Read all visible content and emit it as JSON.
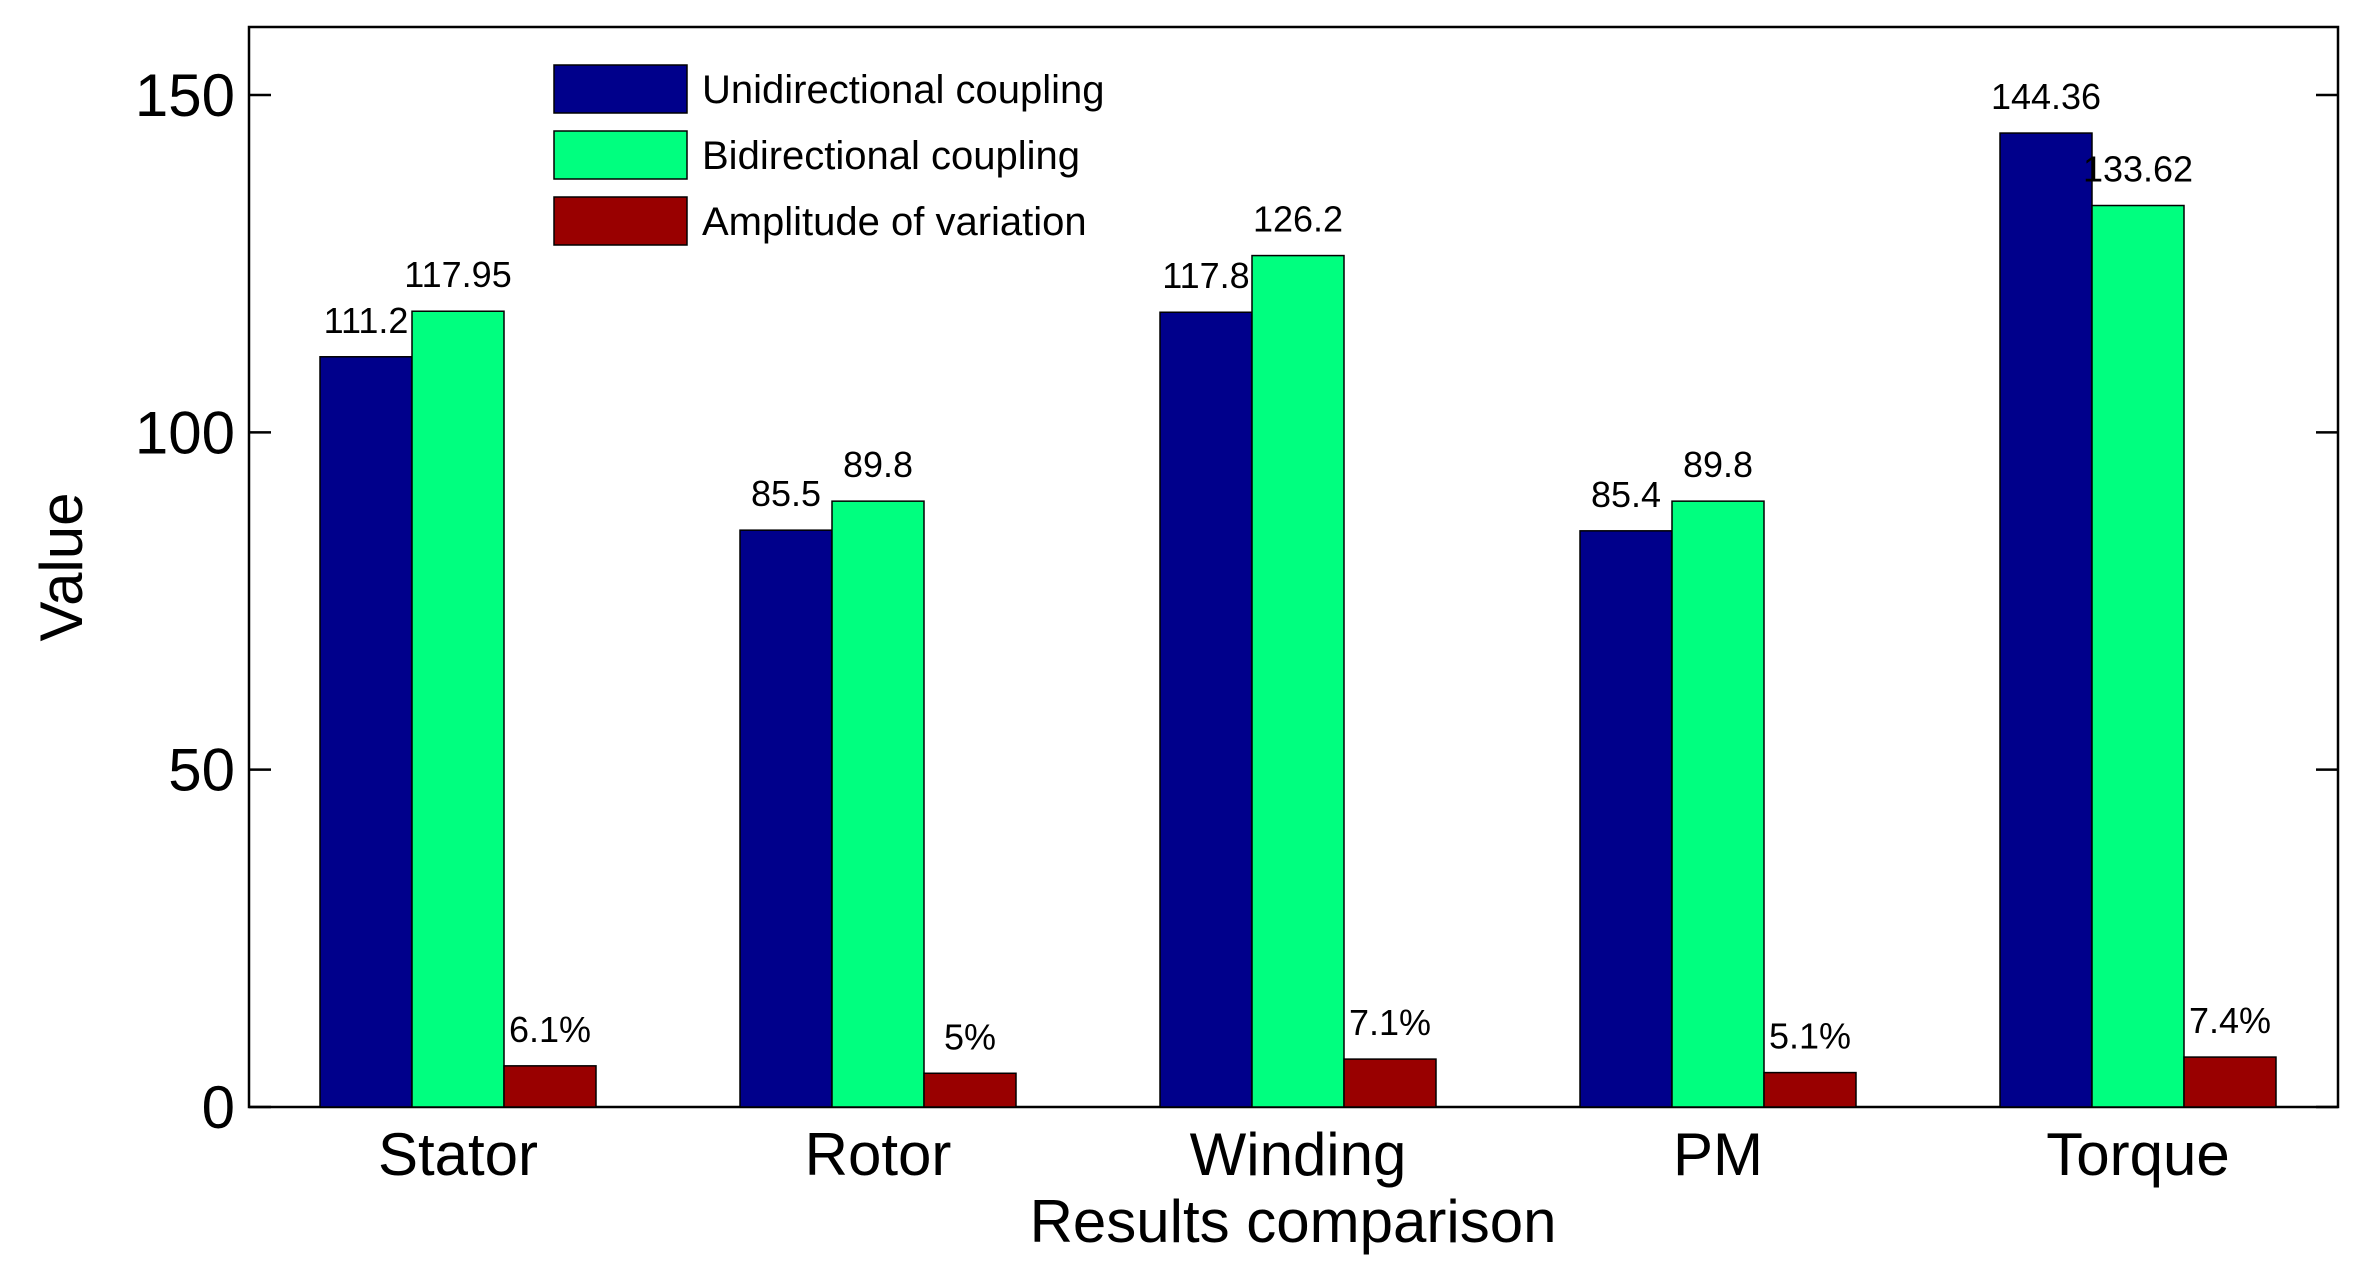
{
  "chart_data": {
    "type": "bar",
    "title": "",
    "xlabel": "Results comparison",
    "ylabel": "Value",
    "ylim": [
      0,
      160
    ],
    "yticks": [
      0,
      50,
      100,
      150
    ],
    "ytick_labels": [
      "0",
      "50",
      "100",
      "150"
    ],
    "grid": false,
    "legend_position": "top-left",
    "categories": [
      "Stator",
      "Rotor",
      "Winding",
      "PM",
      "Torque"
    ],
    "series": [
      {
        "name": "Unidirectional coupling",
        "color": "#00008B",
        "values": [
          111.2,
          85.5,
          117.8,
          85.4,
          144.36
        ],
        "labels": [
          "111.2",
          "85.5",
          "117.8",
          "85.4",
          "144.36"
        ]
      },
      {
        "name": "Bidirectional coupling",
        "color": "#00FF7F",
        "values": [
          117.95,
          89.8,
          126.2,
          89.8,
          133.62
        ],
        "labels": [
          "117.95",
          "89.8",
          "126.2",
          "89.8",
          "133.62"
        ]
      },
      {
        "name": "Amplitude of variation",
        "color": "#990000",
        "values": [
          6.1,
          5,
          7.1,
          5.1,
          7.4
        ],
        "labels": [
          "6.1%",
          "5%",
          "7.1%",
          "5.1%",
          "7.4%"
        ]
      }
    ]
  }
}
